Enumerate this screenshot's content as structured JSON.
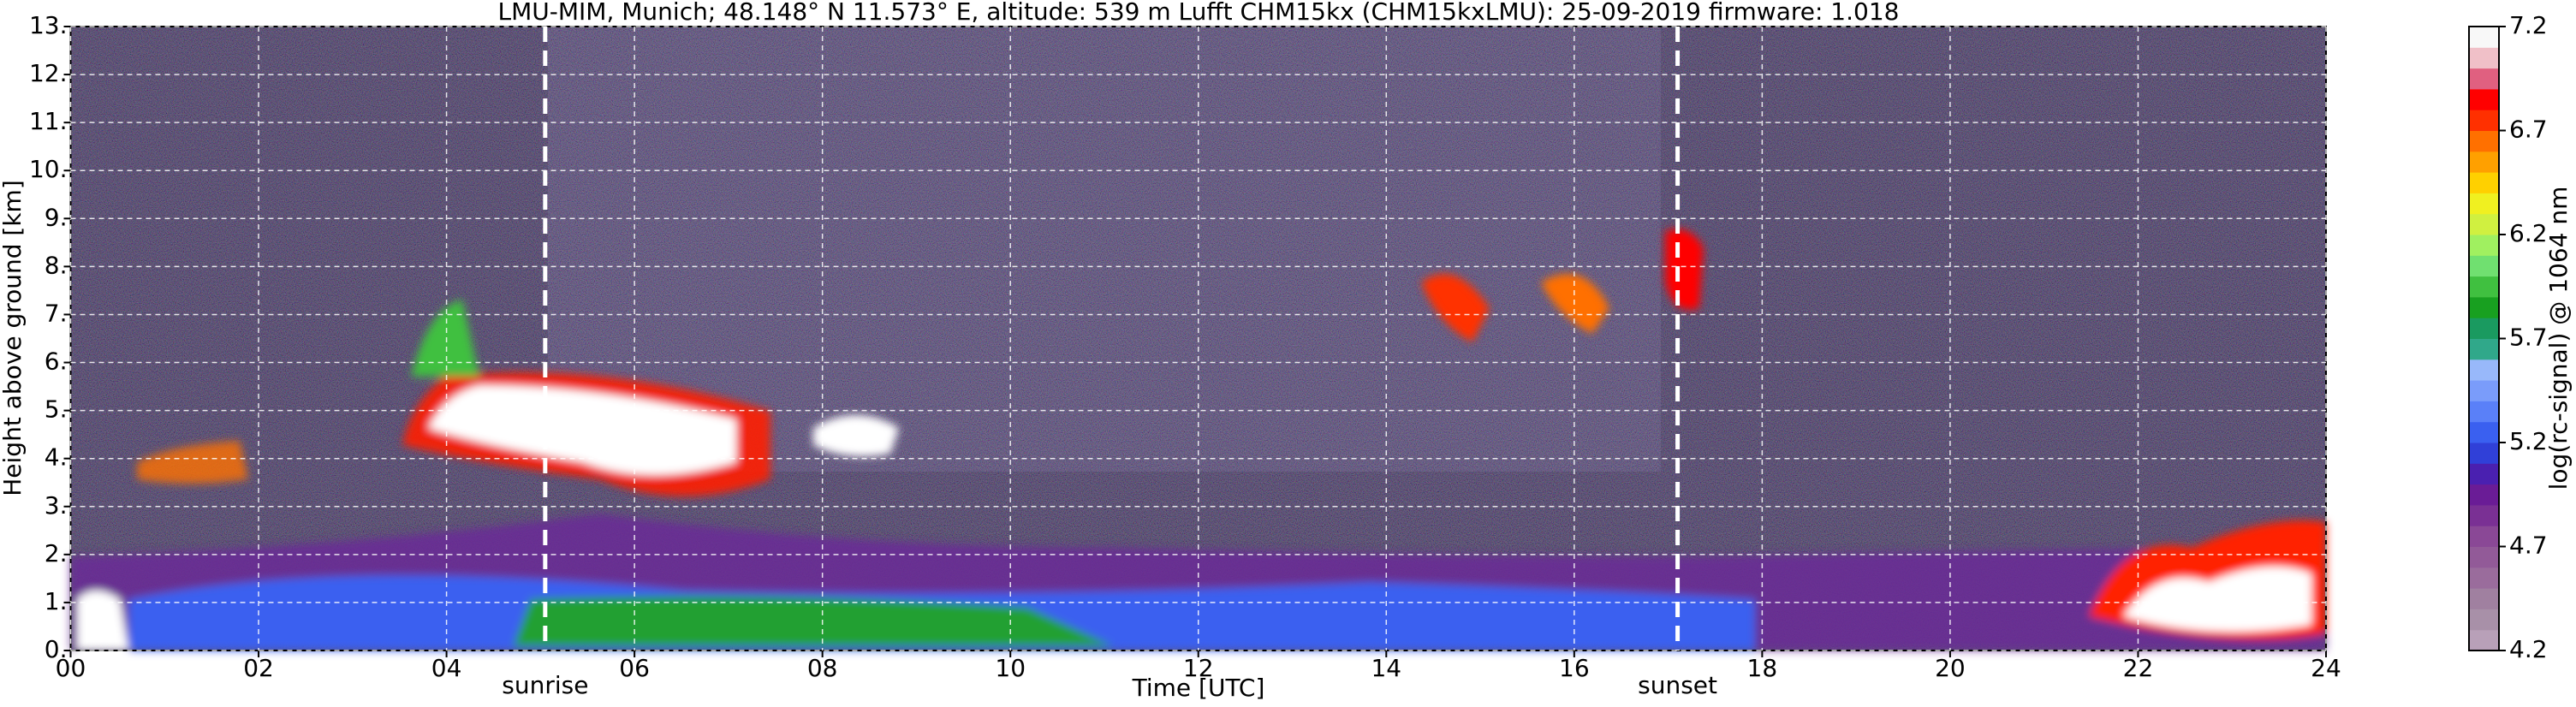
{
  "chart_data": {
    "type": "heatmap",
    "title": "LMU-MIM, Munich; 48.148° N 11.573° E, altitude: 539 m    Lufft CHM15kx (CHM15kxLMU): 25-09-2019    firmware: 1.018",
    "xlabel": "Time [UTC]",
    "ylabel": "Height above ground [km]",
    "xlim": [
      0,
      24
    ],
    "xticks": [
      {
        "value": 0,
        "label": "00"
      },
      {
        "value": 2,
        "label": "02"
      },
      {
        "value": 4,
        "label": "04"
      },
      {
        "value": 6,
        "label": "06"
      },
      {
        "value": 8,
        "label": "08"
      },
      10,
      12,
      14,
      16,
      18,
      20,
      22,
      24
    ],
    "ylim": [
      0,
      13
    ],
    "yticks": [
      {
        "value": 0,
        "label": "0."
      },
      {
        "value": 1,
        "label": "1."
      },
      {
        "value": 2,
        "label": "2."
      },
      {
        "value": 3,
        "label": "3."
      },
      {
        "value": 4,
        "label": "4."
      },
      {
        "value": 5,
        "label": "5."
      },
      {
        "value": 6,
        "label": "6."
      },
      {
        "value": 7,
        "label": "7."
      },
      {
        "value": 8,
        "label": "8."
      },
      {
        "value": 9,
        "label": "9."
      },
      {
        "value": 10,
        "label": "10."
      },
      {
        "value": 11,
        "label": "11."
      },
      {
        "value": 12,
        "label": "12."
      },
      {
        "value": 13,
        "label": "13."
      }
    ],
    "grid": true,
    "annotations": [
      {
        "text": "sunrise",
        "x": 5.05
      },
      {
        "text": "sunset",
        "x": 17.1
      }
    ],
    "colorbar": {
      "label": "log(rc-signal) @ 1064 nm",
      "lim": [
        4.2,
        7.2
      ],
      "ticks": [
        4.2,
        4.7,
        5.2,
        5.7,
        6.2,
        6.7,
        7.2
      ],
      "colors": [
        "#b8a0b8",
        "#a890a8",
        "#a080a0",
        "#9a6c9c",
        "#925a98",
        "#8a4896",
        "#7a3094",
        "#6a1c96",
        "#4a20b0",
        "#3040d8",
        "#3a60f0",
        "#5a80f8",
        "#7a9cfa",
        "#98b8fa",
        "#30a88a",
        "#1a9a60",
        "#18a020",
        "#40c040",
        "#70e070",
        "#a0f060",
        "#d0f040",
        "#f0f020",
        "#ffd000",
        "#ffa000",
        "#ff7000",
        "#ff3000",
        "#ff0000",
        "#e06080",
        "#f0c0c8",
        "#f8f8f8"
      ]
    }
  }
}
